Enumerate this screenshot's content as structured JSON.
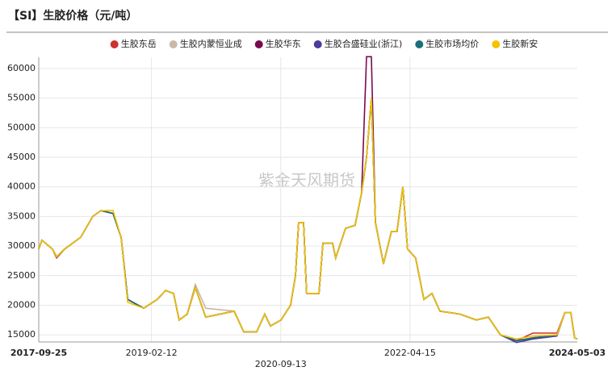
{
  "chart_data": {
    "type": "line",
    "title": "【SI】生胶价格（元/吨）",
    "watermark": "紫金天风期货",
    "x": [
      "2017-09-25",
      "2017-10-09",
      "2017-11-25",
      "2017-12-14",
      "2018-01-19",
      "2018-04-01",
      "2018-05-25",
      "2018-06-30",
      "2018-08-24",
      "2018-09-29",
      "2018-10-28",
      "2019-01-08",
      "2019-03-10",
      "2019-04-16",
      "2019-05-22",
      "2019-06-16",
      "2019-07-22",
      "2019-08-27",
      "2019-10-13",
      "2020-02-17",
      "2020-03-31",
      "2020-05-28",
      "2020-07-03",
      "2020-07-29",
      "2020-09-14",
      "2020-10-27",
      "2020-11-18",
      "2020-12-02",
      "2020-12-24",
      "2021-01-07",
      "2021-03-03",
      "2021-03-21",
      "2021-05-03",
      "2021-05-17",
      "2021-06-30",
      "2021-08-12",
      "2021-09-10",
      "2021-10-02",
      "2021-10-24",
      "2021-11-11",
      "2021-12-17",
      "2022-01-22",
      "2022-02-16",
      "2022-03-14",
      "2022-04-04",
      "2022-05-10",
      "2022-06-16",
      "2022-07-22",
      "2022-08-27",
      "2022-11-25",
      "2023-02-06",
      "2023-04-01",
      "2023-05-25",
      "2023-08-05",
      "2023-10-17",
      "2024-02-02",
      "2024-03-09",
      "2024-04-04",
      "2024-04-21",
      "2024-05-03"
    ],
    "series": [
      {
        "name": "生胶东岳",
        "color": "#d0312d",
        "values": [
          29500,
          31000,
          29500,
          28000,
          29500,
          31500,
          35000,
          36000,
          35500,
          31500,
          21000,
          19500,
          21000,
          22500,
          22000,
          17500,
          18500,
          23000,
          18000,
          19000,
          15500,
          15500,
          18500,
          16500,
          17500,
          20000,
          25000,
          34000,
          34000,
          22000,
          22000,
          30500,
          30500,
          28000,
          33000,
          33500,
          39000,
          45000,
          55000,
          34000,
          27000,
          32500,
          32500,
          40000,
          29500,
          28000,
          21000,
          22000,
          19000,
          18500,
          17500,
          18000,
          15000,
          14000,
          15300,
          15300,
          18800,
          18800,
          14500,
          14300
        ]
      },
      {
        "name": "生胶内蒙恒业成",
        "color": "#c9b9a6",
        "values": [
          29500,
          31000,
          29500,
          28200,
          29500,
          31500,
          35000,
          36000,
          35500,
          31500,
          21000,
          19500,
          21000,
          22500,
          22000,
          17500,
          18500,
          23500,
          19500,
          19000,
          15500,
          15500,
          18500,
          16500,
          17500,
          20000,
          25000,
          34000,
          34000,
          22000,
          22000,
          30500,
          30500,
          28000,
          33000,
          33500,
          39000,
          45000,
          55000,
          34000,
          27000,
          32500,
          32500,
          40000,
          29500,
          28000,
          21000,
          22000,
          19000,
          18500,
          17500,
          18000,
          15000,
          14000,
          14500,
          15000,
          18800,
          18800,
          14500,
          14300
        ]
      },
      {
        "name": "生胶华东",
        "color": "#7a0a50",
        "values": [
          29500,
          31000,
          29500,
          28200,
          29500,
          31500,
          35000,
          36000,
          35500,
          31500,
          21000,
          19500,
          21000,
          22500,
          22000,
          17500,
          18500,
          23000,
          18000,
          19000,
          15500,
          15500,
          18500,
          16500,
          17500,
          20000,
          25000,
          34000,
          34000,
          22000,
          22000,
          30500,
          30500,
          28000,
          33000,
          33500,
          39000,
          62000,
          62000,
          34000,
          27000,
          32500,
          32500,
          40000,
          29500,
          28000,
          21000,
          22000,
          19000,
          18500,
          17500,
          18000,
          15000,
          14000,
          14500,
          15000,
          18800,
          18800,
          14500,
          14300
        ]
      },
      {
        "name": "生胶合盛硅业(浙江)",
        "color": "#4a3c9c",
        "values": [
          29500,
          31000,
          29500,
          28200,
          29500,
          31500,
          35000,
          36000,
          35500,
          31500,
          21000,
          19500,
          21000,
          22500,
          22000,
          17500,
          18500,
          23000,
          18000,
          19000,
          15500,
          15500,
          18500,
          16500,
          17500,
          20000,
          25000,
          34000,
          34000,
          22000,
          22000,
          30500,
          30500,
          28000,
          33000,
          33500,
          39000,
          45000,
          55000,
          34000,
          27000,
          32500,
          32500,
          40000,
          29500,
          28000,
          21000,
          22000,
          19000,
          18500,
          17500,
          18000,
          15000,
          13700,
          14300,
          14800,
          18800,
          18800,
          14500,
          14300
        ]
      },
      {
        "name": "生胶市场均价",
        "color": "#1b6f7c",
        "values": [
          29500,
          31000,
          29500,
          28200,
          29500,
          31500,
          35000,
          36000,
          35500,
          31500,
          21000,
          19500,
          21000,
          22500,
          22000,
          17500,
          18500,
          23000,
          18000,
          19000,
          15500,
          15500,
          18500,
          16500,
          17500,
          20000,
          25000,
          34000,
          34000,
          22000,
          22000,
          30500,
          30500,
          28000,
          33000,
          33500,
          39000,
          45000,
          55000,
          34000,
          27000,
          32500,
          32500,
          40000,
          29500,
          28000,
          21000,
          22000,
          19000,
          18500,
          17500,
          18000,
          15000,
          14000,
          14500,
          15000,
          18800,
          18800,
          14500,
          14300
        ]
      },
      {
        "name": "生胶新安",
        "color": "#f5c200",
        "values": [
          29500,
          31000,
          29500,
          28200,
          29500,
          31500,
          35000,
          36000,
          36000,
          31500,
          20500,
          19500,
          21000,
          22500,
          22000,
          17500,
          18500,
          23000,
          18000,
          19000,
          15500,
          15500,
          18500,
          16500,
          17500,
          20000,
          25000,
          34000,
          34000,
          22000,
          22000,
          30500,
          30500,
          28000,
          33000,
          33500,
          39000,
          45000,
          55000,
          34000,
          27000,
          32500,
          32500,
          40000,
          29500,
          28000,
          21000,
          22000,
          19000,
          18500,
          17500,
          18000,
          15000,
          14300,
          14800,
          15000,
          18800,
          18800,
          14500,
          14300
        ]
      }
    ],
    "xlim": [
      "2017-09-25",
      "2024-05-03"
    ],
    "xticks": [
      "2017-09-25",
      "2019-02-12",
      "2020-09-13",
      "2022-04-15",
      "2024-05-03"
    ],
    "ylim": [
      13800,
      61900
    ],
    "yticks": [
      15000,
      20000,
      25000,
      30000,
      35000,
      40000,
      45000,
      50000,
      55000,
      60000
    ],
    "grid": true,
    "legend": "top"
  }
}
